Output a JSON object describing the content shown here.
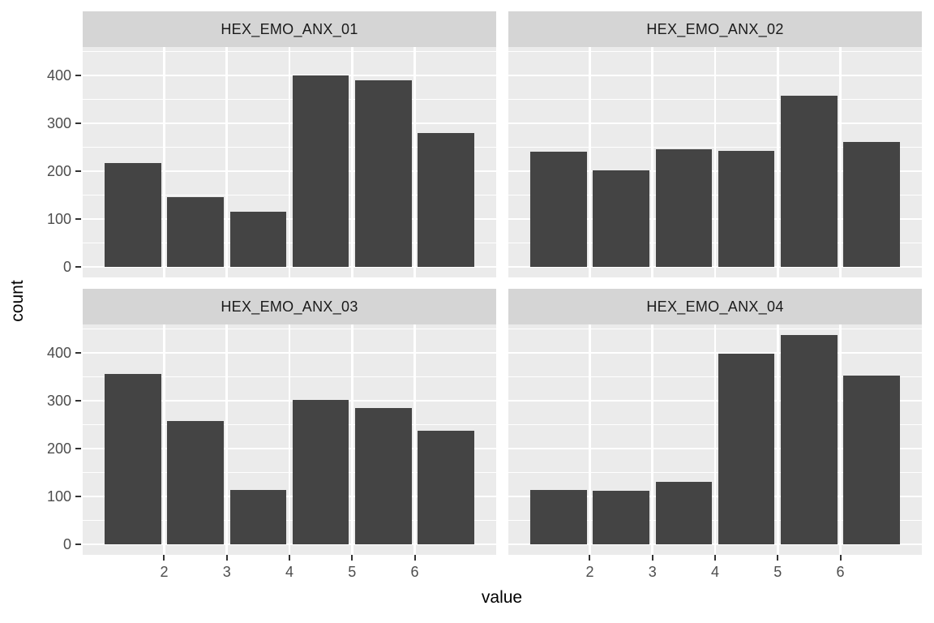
{
  "figure": {
    "colors": {
      "figure_bg": "#ffffff",
      "panel_bg": "#ebebeb",
      "strip_bg": "#d5d5d5",
      "strip_text": "#1a1a1a",
      "bar_fill": "#444444",
      "grid_color": "#ffffff",
      "axis_text": "#4d4d4d",
      "tick_color": "#333333",
      "title_color": "#000000"
    }
  },
  "chart_data": {
    "type": "bar",
    "subtype": "faceted-histogram",
    "facet_layout": "2x2",
    "facets": [
      {
        "title": "HEX_EMO_ANX_01",
        "values": [
          217,
          145,
          116,
          400,
          390,
          280
        ]
      },
      {
        "title": "HEX_EMO_ANX_02",
        "values": [
          240,
          201,
          246,
          243,
          358,
          260
        ]
      },
      {
        "title": "HEX_EMO_ANX_03",
        "values": [
          355,
          257,
          114,
          302,
          284,
          237
        ]
      },
      {
        "title": "HEX_EMO_ANX_04",
        "values": [
          114,
          112,
          131,
          398,
          437,
          352
        ]
      }
    ],
    "bar_centers": [
      1.5,
      2.5,
      3.5,
      4.5,
      5.5,
      6.5
    ],
    "bar_width": 0.9,
    "x_ticks": [
      2,
      3,
      4,
      5,
      6
    ],
    "x_tick_labels": [
      "2",
      "3",
      "4",
      "5",
      "6"
    ],
    "y_ticks": [
      0,
      100,
      200,
      300,
      400
    ],
    "y_tick_labels": [
      "0",
      "100",
      "200",
      "300",
      "400"
    ],
    "y_minor_ticks": [
      50,
      150,
      250,
      350,
      450
    ],
    "xlim": [
      0.7,
      7.3
    ],
    "ylim": [
      -22,
      459
    ],
    "xlabel": "value",
    "ylabel": "count",
    "legend": "none",
    "grid": true
  }
}
